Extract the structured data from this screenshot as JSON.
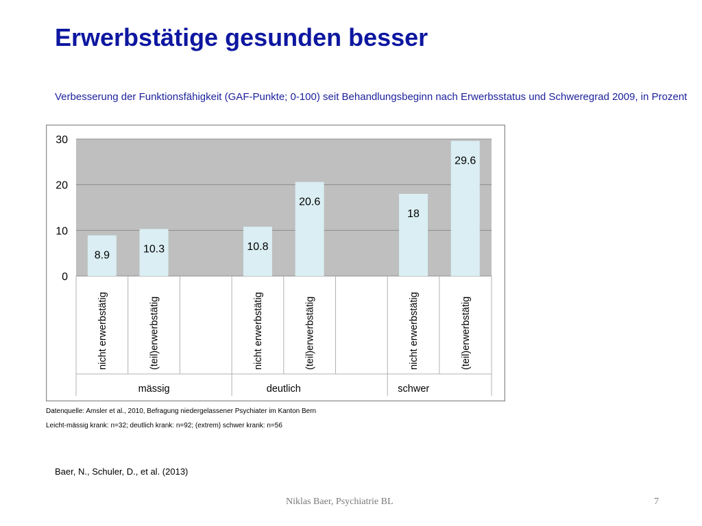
{
  "slide": {
    "title": "Erwerbstätige gesunden besser",
    "subtitle": "Verbesserung der Funktionsfähigkeit (GAF-Punkte; 0-100) seit Behandlungsbeginn nach Erwerbsstatus und Schweregrad 2009, in Prozent",
    "source_note": "Datenquelle: Amsler et al., 2010, Befragung niedergelassener Psychiater im Kanton Bern",
    "sample_note": "Leicht-mässig krank: n=32; deutlich krank: n=92; (extrem) schwer krank: n=56",
    "citation": "Baer, N., Schuler, D., et al. (2013)",
    "footer_author": "Niklas Baer, Psychiatrie BL",
    "page_number": "7"
  },
  "colors": {
    "title": "#0d17a0",
    "plot_background": "#bfbfbf",
    "bar_fill": "#daeef3",
    "gridline": "#8c8c8c"
  },
  "chart_data": {
    "type": "bar",
    "title": "",
    "xlabel": "",
    "ylabel": "",
    "ylim": [
      0,
      30
    ],
    "yticks": [
      0,
      10,
      20,
      30
    ],
    "grid": true,
    "legend": "none",
    "groups": [
      {
        "label": "mässig",
        "bars": [
          {
            "category": "nicht erwerbstätig",
            "value": 8.9,
            "label": "8.9"
          },
          {
            "category": "(teil)erwerbstätig",
            "value": 10.3,
            "label": "10.3"
          }
        ]
      },
      {
        "label": "deutlich",
        "bars": [
          {
            "category": "nicht erwerbstätig",
            "value": 10.8,
            "label": "10.8"
          },
          {
            "category": "(teil)erwerbstätig",
            "value": 20.6,
            "label": "20.6"
          }
        ]
      },
      {
        "label": "schwer",
        "bars": [
          {
            "category": "nicht erwerbstätig",
            "value": 18,
            "label": "18"
          },
          {
            "category": "(teil)erwerbstätig",
            "value": 29.6,
            "label": "29.6"
          }
        ]
      }
    ]
  }
}
